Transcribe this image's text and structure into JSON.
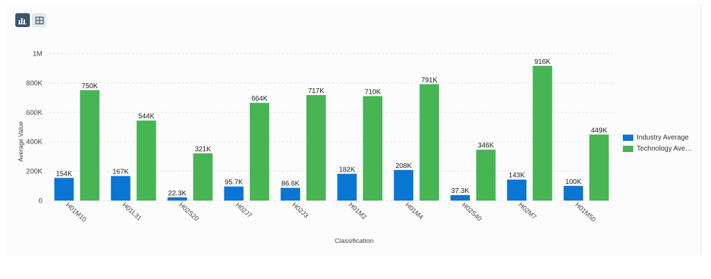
{
  "toolbar": {
    "chart_view_icon": "bar-chart-icon",
    "table_view_icon": "table-grid-icon"
  },
  "colors": {
    "industry": "#0a76d4",
    "technology": "#47b553",
    "gridline": "#e6e6e6",
    "axis_text": "#444444",
    "toolbar_active": "#3f536e",
    "toolbar_inactive": "#e4e7eb"
  },
  "legend": {
    "items": [
      {
        "label": "Industry Average",
        "color": "#0a76d4"
      },
      {
        "label": "Technology Aver...",
        "color": "#47b553"
      }
    ],
    "position": "right"
  },
  "chart_data": {
    "type": "bar",
    "xlabel": "Classification",
    "ylabel": "Average Value",
    "ylim": [
      0,
      1000000
    ],
    "yticks": [
      {
        "value": 0,
        "label": "0"
      },
      {
        "value": 200000,
        "label": "200K"
      },
      {
        "value": 400000,
        "label": "400K"
      },
      {
        "value": 600000,
        "label": "600K"
      },
      {
        "value": 800000,
        "label": "800K"
      },
      {
        "value": 1000000,
        "label": "1M"
      }
    ],
    "grid": true,
    "categories": [
      "H01M10",
      "H01L31",
      "H02S20",
      "H02J7",
      "H02J3",
      "H01M2",
      "H01M4",
      "H02S40",
      "H02M7",
      "H01M50"
    ],
    "series": [
      {
        "name": "Industry Average",
        "values": [
          154000,
          167000,
          22300,
          95700,
          86600,
          182000,
          208000,
          37300,
          143000,
          100000
        ],
        "labels": [
          "154K",
          "167K",
          "22.3K",
          "95.7K",
          "86.6K",
          "182K",
          "208K",
          "37.3K",
          "143K",
          "100K"
        ]
      },
      {
        "name": "Technology Average",
        "values": [
          750000,
          544000,
          321000,
          664000,
          717000,
          710000,
          791000,
          346000,
          916000,
          449000
        ],
        "labels": [
          "750K",
          "544K",
          "321K",
          "664K",
          "717K",
          "710K",
          "791K",
          "346K",
          "916K",
          "449K"
        ]
      }
    ]
  }
}
